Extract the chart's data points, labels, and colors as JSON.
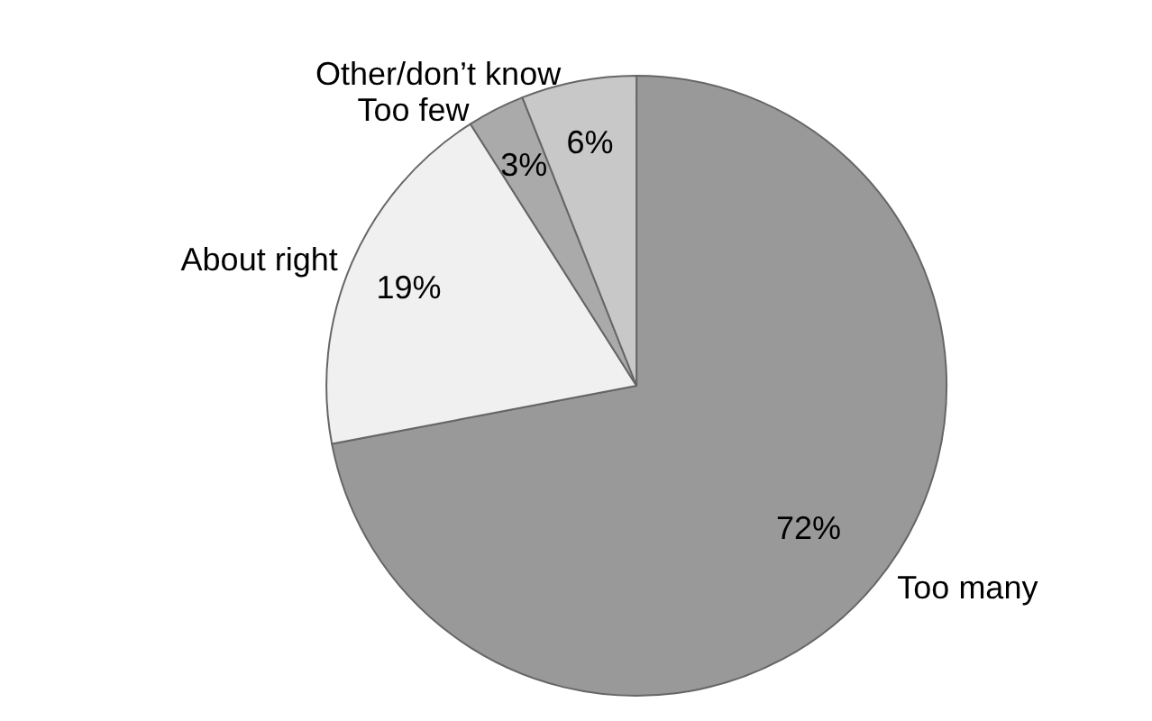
{
  "chart_data": {
    "type": "pie",
    "categories": [
      "Too many",
      "About right",
      "Too few",
      "Other/don’t know"
    ],
    "values": [
      72,
      19,
      3,
      6
    ],
    "colors": [
      "#999999",
      "#f0f0f0",
      "#aaaaaa",
      "#c8c8c8"
    ],
    "value_labels": [
      "72%",
      "19%",
      "3%",
      "6%"
    ],
    "legend": false
  }
}
